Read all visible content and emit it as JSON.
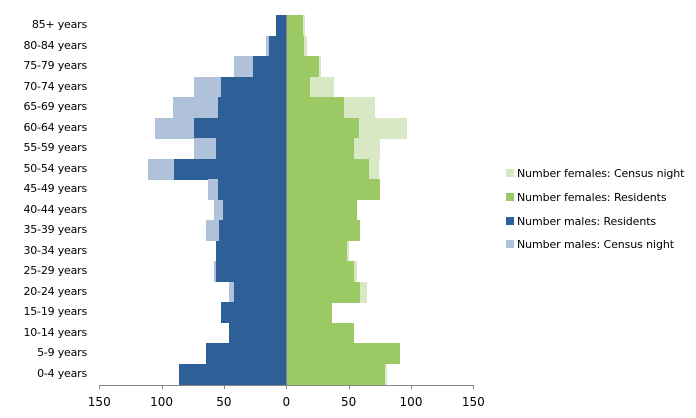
{
  "chart_data": {
    "type": "bar",
    "orientation": "horizontal",
    "subtype": "population-pyramid",
    "title": "",
    "xlabel": "",
    "ylabel": "",
    "xlim": [
      -150,
      150
    ],
    "xticks": [
      "150",
      "100",
      "50",
      "0",
      "50",
      "100",
      "150"
    ],
    "xtick_values": [
      -150,
      -100,
      -50,
      0,
      50,
      100,
      150
    ],
    "grid": false,
    "legend_position": "right",
    "categories": [
      "85+ years",
      "80-84 years",
      "75-79 years",
      "70-74 years",
      "65-69 years",
      "60-64 years",
      "55-59 years",
      "50-54 years",
      "45-49 years",
      "40-44 years",
      "35-39 years",
      "30-34 years",
      "25-29 years",
      "20-24 years",
      "15-19 years",
      "10-14 years",
      "5-9 years",
      "0-4 years"
    ],
    "series": [
      {
        "name": "Number females: Census night",
        "color": "#D9E8C4",
        "side": "right",
        "values": [
          15,
          17,
          28,
          38,
          71,
          97,
          75,
          74,
          75,
          57,
          59,
          50,
          57,
          65,
          37,
          54,
          91,
          81
        ]
      },
      {
        "name": "Number females: Residents",
        "color": "#9BC964",
        "side": "right",
        "values": [
          13,
          14,
          26,
          19,
          46,
          58,
          54,
          66,
          75,
          57,
          59,
          49,
          54,
          59,
          37,
          54,
          91,
          79
        ]
      },
      {
        "name": "Number males: Residents",
        "color": "#2E5F96",
        "side": "left",
        "values": [
          8,
          14,
          27,
          52,
          55,
          74,
          56,
          90,
          55,
          51,
          54,
          56,
          56,
          42,
          52,
          46,
          64,
          86
        ]
      },
      {
        "name": "Number males: Census night",
        "color": "#B0C1DA",
        "side": "left",
        "values": [
          8,
          16,
          42,
          74,
          91,
          105,
          74,
          111,
          63,
          58,
          64,
          56,
          58,
          46,
          52,
          46,
          64,
          86
        ]
      }
    ]
  },
  "legend": {
    "items": [
      {
        "label": "Number females: Census night",
        "color": "#D9E8C4"
      },
      {
        "label": "Number females: Residents",
        "color": "#9BC964"
      },
      {
        "label": "Number males: Residents",
        "color": "#2E5F96"
      },
      {
        "label": "Number males: Census night",
        "color": "#B0C1DA"
      }
    ]
  }
}
